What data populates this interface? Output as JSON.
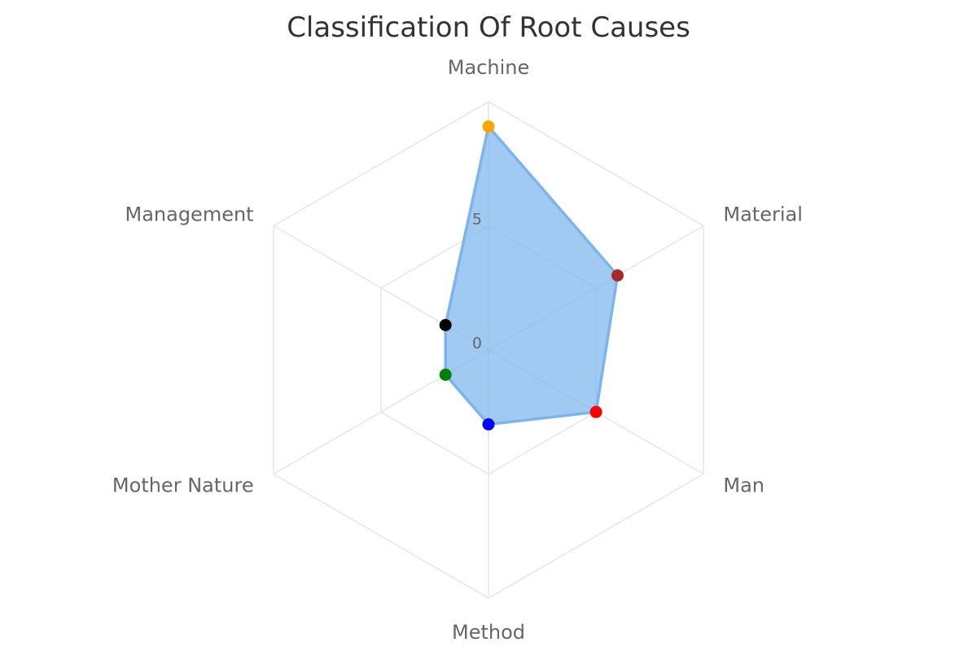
{
  "chart_data": {
    "type": "radar",
    "title": "Classification Of Root Causes",
    "categories": [
      "Machine",
      "Material",
      "Man",
      "Method",
      "Mother Nature",
      "Management"
    ],
    "series": [
      {
        "values": [
          9,
          6,
          5,
          3,
          2,
          2
        ],
        "fill": "#7cb5ec",
        "point_colors": [
          "#ffa500",
          "#a52a2a",
          "#ff0000",
          "#0000ff",
          "#008000",
          "#000000"
        ]
      }
    ],
    "rlim": [
      0,
      10
    ],
    "ticks": [
      "0",
      "5"
    ],
    "grid": true
  }
}
